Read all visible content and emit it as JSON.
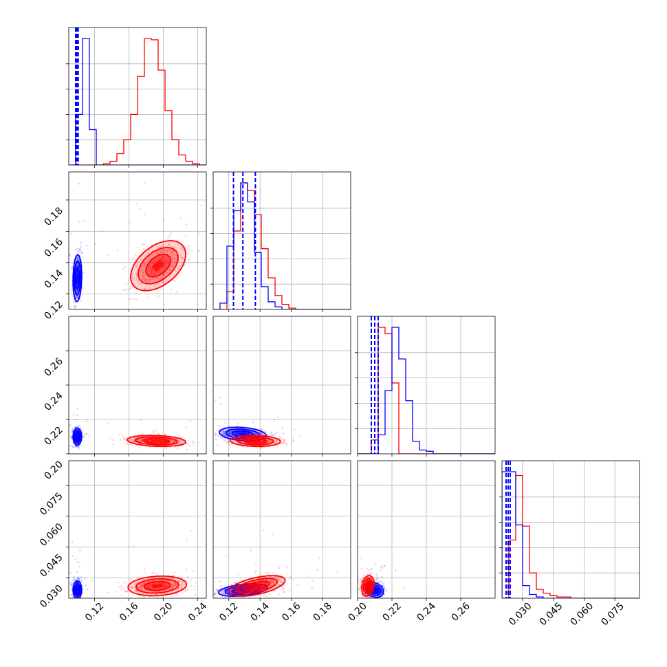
{
  "chart_data": {
    "type": "corner",
    "grid": true,
    "colors": {
      "blue": "#0000ff",
      "red": "#ff0000"
    },
    "series": [
      {
        "color": "blue",
        "quantiles": [
          [
            0.098,
            0.0995,
            0.101
          ],
          [
            0.123,
            0.129,
            0.137
          ],
          [
            0.208,
            0.21,
            0.212
          ],
          [
            0.022,
            0.023,
            0.024
          ]
        ]
      },
      {
        "color": "red",
        "quantiles": []
      }
    ],
    "params": [
      {
        "range": [
          0.09,
          0.25
        ],
        "ticks": [
          "0.12",
          "0.16",
          "0.20",
          "0.24"
        ],
        "tick_values": [
          0.12,
          0.16,
          0.2,
          0.24
        ]
      },
      {
        "range": [
          0.11,
          0.198
        ],
        "ticks": [
          "0.12",
          "0.14",
          "0.16",
          "0.18"
        ],
        "tick_values": [
          0.12,
          0.14,
          0.16,
          0.18
        ]
      },
      {
        "range": [
          0.2,
          0.28
        ],
        "ticks": [
          "0.20",
          "0.22",
          "0.24",
          "0.26"
        ],
        "tick_values": [
          0.2,
          0.22,
          0.24,
          0.26
        ]
      },
      {
        "range": [
          0.02,
          0.087
        ],
        "ticks": [
          "0.030",
          "0.045",
          "0.060",
          "0.075"
        ],
        "tick_values": [
          0.03,
          0.045,
          0.06,
          0.075
        ]
      }
    ],
    "histograms": [
      {
        "edges_count": 20,
        "blue": [
          0,
          40,
          100,
          28,
          0,
          0,
          0,
          0,
          0,
          0,
          0,
          0,
          0,
          0,
          0,
          0,
          0,
          0,
          0,
          0
        ],
        "red": [
          0,
          0,
          0,
          0,
          0,
          1,
          3,
          9,
          20,
          40,
          70,
          100,
          99,
          75,
          43,
          20,
          8,
          3,
          1,
          0
        ]
      },
      {
        "edges_count": 20,
        "blue": [
          0,
          5,
          50,
          78,
          100,
          85,
          45,
          18,
          6,
          2,
          0,
          0,
          0,
          0,
          0,
          0,
          0,
          0,
          0,
          0
        ],
        "red": [
          0,
          0,
          14,
          62,
          100,
          94,
          75,
          48,
          25,
          11,
          4,
          1,
          0,
          0,
          0,
          0,
          0,
          0,
          0,
          0
        ]
      },
      {
        "edges_count": 20,
        "blue": [
          0,
          0,
          0,
          15,
          50,
          100,
          75,
          42,
          10,
          3,
          2,
          0,
          0,
          0,
          0,
          0,
          0,
          0,
          0,
          0
        ],
        "red": [
          0,
          0,
          11,
          100,
          95,
          56,
          0,
          0,
          0,
          0,
          0,
          0,
          0,
          0,
          0,
          0,
          0,
          0,
          0,
          0
        ]
      },
      {
        "edges_count": 20,
        "blue": [
          100,
          100,
          58,
          10,
          3,
          1,
          0,
          0,
          0,
          0,
          0,
          0,
          0,
          0,
          0,
          0,
          0,
          0,
          0,
          0
        ],
        "red": [
          0,
          46,
          97,
          57,
          20,
          7,
          4,
          2,
          1,
          1,
          0,
          0,
          0,
          0,
          0,
          0,
          0,
          0,
          0,
          0
        ]
      }
    ],
    "pairs": [
      {
        "row": 1,
        "col": 0,
        "blue": {
          "mean": [
            0.1,
            0.13
          ],
          "sd": [
            0.0025,
            0.0075
          ],
          "rho": 0.1
        },
        "red": {
          "mean": [
            0.194,
            0.138
          ],
          "sd": [
            0.016,
            0.008
          ],
          "rho": 0.45
        }
      },
      {
        "row": 2,
        "col": 0,
        "blue": {
          "mean": [
            0.1,
            0.21
          ],
          "sd": [
            0.0025,
            0.0025
          ],
          "rho": 0.0
        },
        "red": {
          "mean": [
            0.192,
            0.2075
          ],
          "sd": [
            0.017,
            0.0016
          ],
          "rho": -0.2
        }
      },
      {
        "row": 2,
        "col": 1,
        "blue": {
          "mean": [
            0.129,
            0.2115
          ],
          "sd": [
            0.0075,
            0.002
          ],
          "rho": -0.25
        },
        "red": {
          "mean": [
            0.137,
            0.2075
          ],
          "sd": [
            0.008,
            0.0016
          ],
          "rho": -0.1
        }
      },
      {
        "row": 3,
        "col": 0,
        "blue": {
          "mean": [
            0.1,
            0.024
          ],
          "sd": [
            0.0025,
            0.0022
          ],
          "rho": 0.0
        },
        "red": {
          "mean": [
            0.193,
            0.026
          ],
          "sd": [
            0.017,
            0.0024
          ],
          "rho": 0.15
        }
      },
      {
        "row": 3,
        "col": 1,
        "blue": {
          "mean": [
            0.129,
            0.024
          ],
          "sd": [
            0.0078,
            0.0015
          ],
          "rho": 0.4
        },
        "red": {
          "mean": [
            0.138,
            0.026
          ],
          "sd": [
            0.009,
            0.0025
          ],
          "rho": 0.55
        }
      },
      {
        "row": 3,
        "col": 2,
        "blue": {
          "mean": [
            0.21,
            0.024
          ],
          "sd": [
            0.0025,
            0.0018
          ],
          "rho": -0.2
        },
        "red": {
          "mean": [
            0.206,
            0.026
          ],
          "sd": [
            0.0018,
            0.0025
          ],
          "rho": 0.2
        }
      }
    ]
  }
}
